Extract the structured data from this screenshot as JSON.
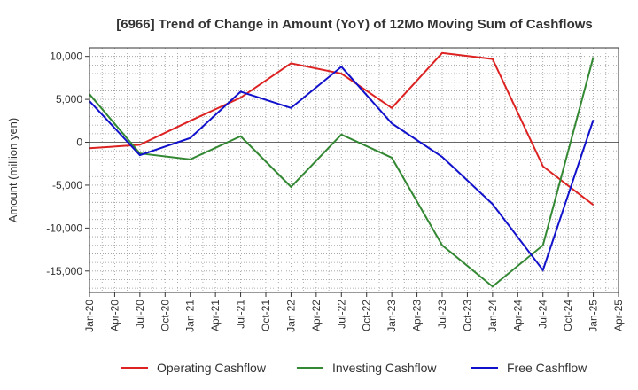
{
  "chart_data": {
    "type": "line",
    "title": "[6966]  Trend of Change in Amount (YoY) of 12Mo Moving Sum of Cashflows",
    "ylabel": "Amount (million yen)",
    "xlabel": "",
    "ylim": [
      -17500,
      11000
    ],
    "yticks": [
      10000,
      5000,
      0,
      -5000,
      -10000,
      -15000
    ],
    "ytick_labels": [
      "10,000",
      "5,000",
      "0",
      "-5,000",
      "-10,000",
      "-15,000"
    ],
    "xlim": [
      0,
      20
    ],
    "x_tick_labels": [
      "Jan-20",
      "Apr-20",
      "Jul-20",
      "Oct-20",
      "Jan-21",
      "Apr-21",
      "Jul-21",
      "Oct-21",
      "Jan-22",
      "Apr-22",
      "Jul-22",
      "Oct-22",
      "Jan-23",
      "Apr-23",
      "Jul-23",
      "Oct-23",
      "Jan-24",
      "Apr-24",
      "Jul-24",
      "Oct-24",
      "Jan-25",
      "Apr-25"
    ],
    "x_tick_positions": [
      0,
      1,
      2,
      3,
      4,
      5,
      6,
      7,
      8,
      9,
      10,
      11,
      12,
      13,
      14,
      15,
      16,
      17,
      18,
      19,
      20,
      21
    ],
    "x": [
      0,
      2,
      4,
      6,
      8,
      10,
      12,
      14,
      16,
      18,
      20
    ],
    "series": [
      {
        "name": "Operating Cashflow",
        "color": "#dd2222",
        "values": [
          -700,
          -300,
          2500,
          5200,
          9200,
          8000,
          4000,
          10400,
          9700,
          -2800,
          -7300
        ]
      },
      {
        "name": "Investing Cashflow",
        "color": "#338833",
        "values": [
          5600,
          -1300,
          -2000,
          700,
          -5200,
          900,
          -1800,
          -12000,
          -16800,
          -12000,
          9900
        ]
      },
      {
        "name": "Free Cashflow",
        "color": "#1111cc",
        "values": [
          4800,
          -1500,
          500,
          5900,
          4000,
          8800,
          2200,
          -1700,
          -7200,
          -14900,
          2600
        ]
      }
    ],
    "grid": true,
    "legend_position": "bottom"
  }
}
